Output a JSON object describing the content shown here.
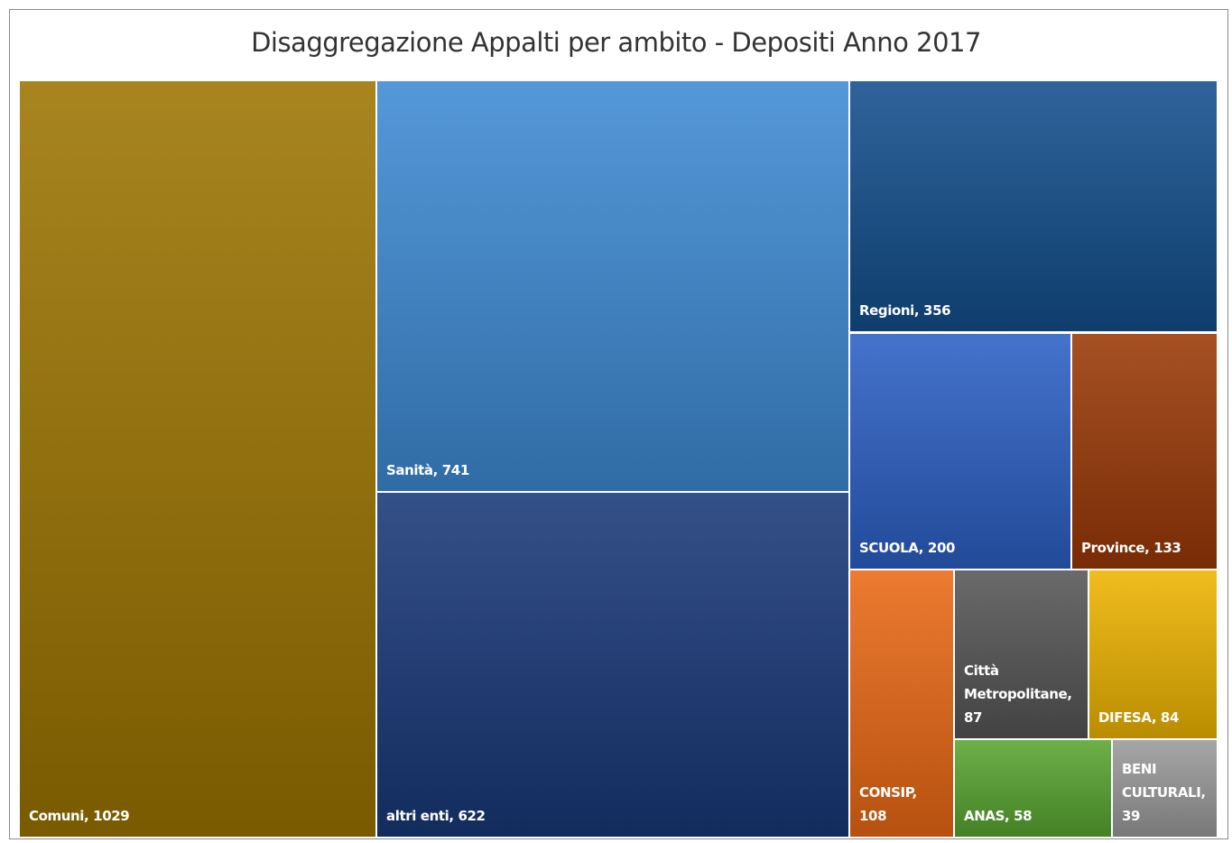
{
  "chart_data": {
    "type": "treemap",
    "title": "Disaggregazione Appalti per ambito - Depositi Anno 2017",
    "values": [
      1029,
      741,
      622,
      356,
      200,
      133,
      108,
      87,
      84,
      58,
      39
    ],
    "value_labels": [
      "Comuni, 1029",
      "Sanità, 741",
      "altri enti, 622",
      "Regioni, 356",
      "SCUOLA, 200",
      "Province, 133",
      "CONSIP, 108",
      "Città Metropolitane, 87",
      "DIFESA, 84",
      "ANAS, 58",
      "BENI CULTURALI, 39"
    ],
    "colors": [
      "#9c7400",
      "#3d8ad4",
      "#183878",
      "#124e8c",
      "#2b5fc4",
      "#9a3806",
      "#ea6814",
      "#555555",
      "#eeb400",
      "#58a530",
      "#9a9a9a"
    ]
  }
}
